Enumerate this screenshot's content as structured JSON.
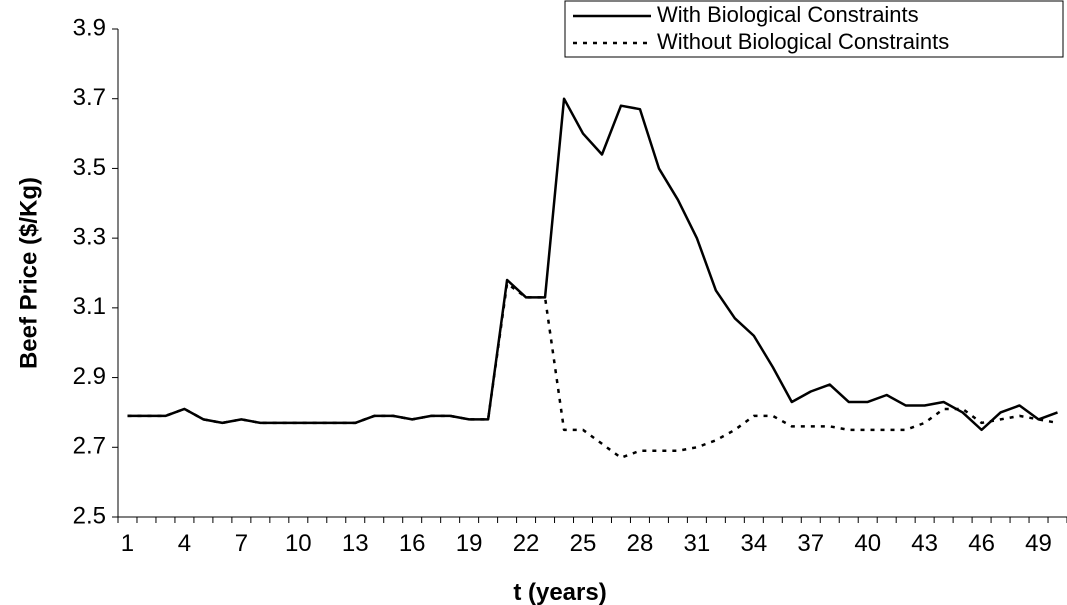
{
  "chart_data": {
    "type": "line",
    "x_label": "t (years)",
    "y_label": "Beef Price ($/Kg)",
    "categories": [
      "1",
      null,
      null,
      "4",
      null,
      null,
      "7",
      null,
      null,
      "10",
      null,
      null,
      "13",
      null,
      null,
      "16",
      null,
      null,
      "19",
      null,
      null,
      "22",
      null,
      null,
      "25",
      null,
      null,
      "28",
      null,
      null,
      "31",
      null,
      null,
      "34",
      null,
      null,
      "37",
      null,
      null,
      "40",
      null,
      null,
      "43",
      null,
      null,
      "46",
      null,
      null,
      "49",
      null
    ],
    "series": [
      {
        "name": "With Biological Constraints",
        "color": "#000000",
        "dash": "solid",
        "values": [
          2.79,
          2.79,
          2.79,
          2.81,
          2.78,
          2.77,
          2.78,
          2.77,
          2.77,
          2.77,
          2.77,
          2.77,
          2.77,
          2.79,
          2.79,
          2.78,
          2.79,
          2.79,
          2.78,
          2.78,
          3.18,
          3.13,
          3.13,
          3.7,
          3.6,
          3.54,
          3.68,
          3.67,
          3.5,
          3.41,
          3.3,
          3.15,
          3.07,
          3.02,
          2.93,
          2.83,
          2.86,
          2.88,
          2.83,
          2.83,
          2.85,
          2.82,
          2.82,
          2.83,
          2.8,
          2.75,
          2.8,
          2.82,
          2.78,
          2.8
        ]
      },
      {
        "name": "Without Biological Constraints",
        "color": "#000000",
        "dash": "dotted",
        "values": [
          2.79,
          2.79,
          2.79,
          2.81,
          2.78,
          2.77,
          2.78,
          2.77,
          2.77,
          2.77,
          2.77,
          2.77,
          2.77,
          2.79,
          2.79,
          2.78,
          2.79,
          2.79,
          2.78,
          2.78,
          3.17,
          3.13,
          3.13,
          2.75,
          2.75,
          2.71,
          2.67,
          2.69,
          2.69,
          2.69,
          2.7,
          2.72,
          2.75,
          2.79,
          2.79,
          2.76,
          2.76,
          2.76,
          2.75,
          2.75,
          2.75,
          2.75,
          2.77,
          2.81,
          2.81,
          2.77,
          2.78,
          2.79,
          2.78,
          2.77
        ]
      }
    ],
    "ylim": [
      2.5,
      3.9
    ],
    "yticks": [
      2.5,
      2.7,
      2.9,
      3.1,
      3.3,
      3.5,
      3.7,
      3.9
    ],
    "grid": false,
    "legend": "top-right"
  }
}
